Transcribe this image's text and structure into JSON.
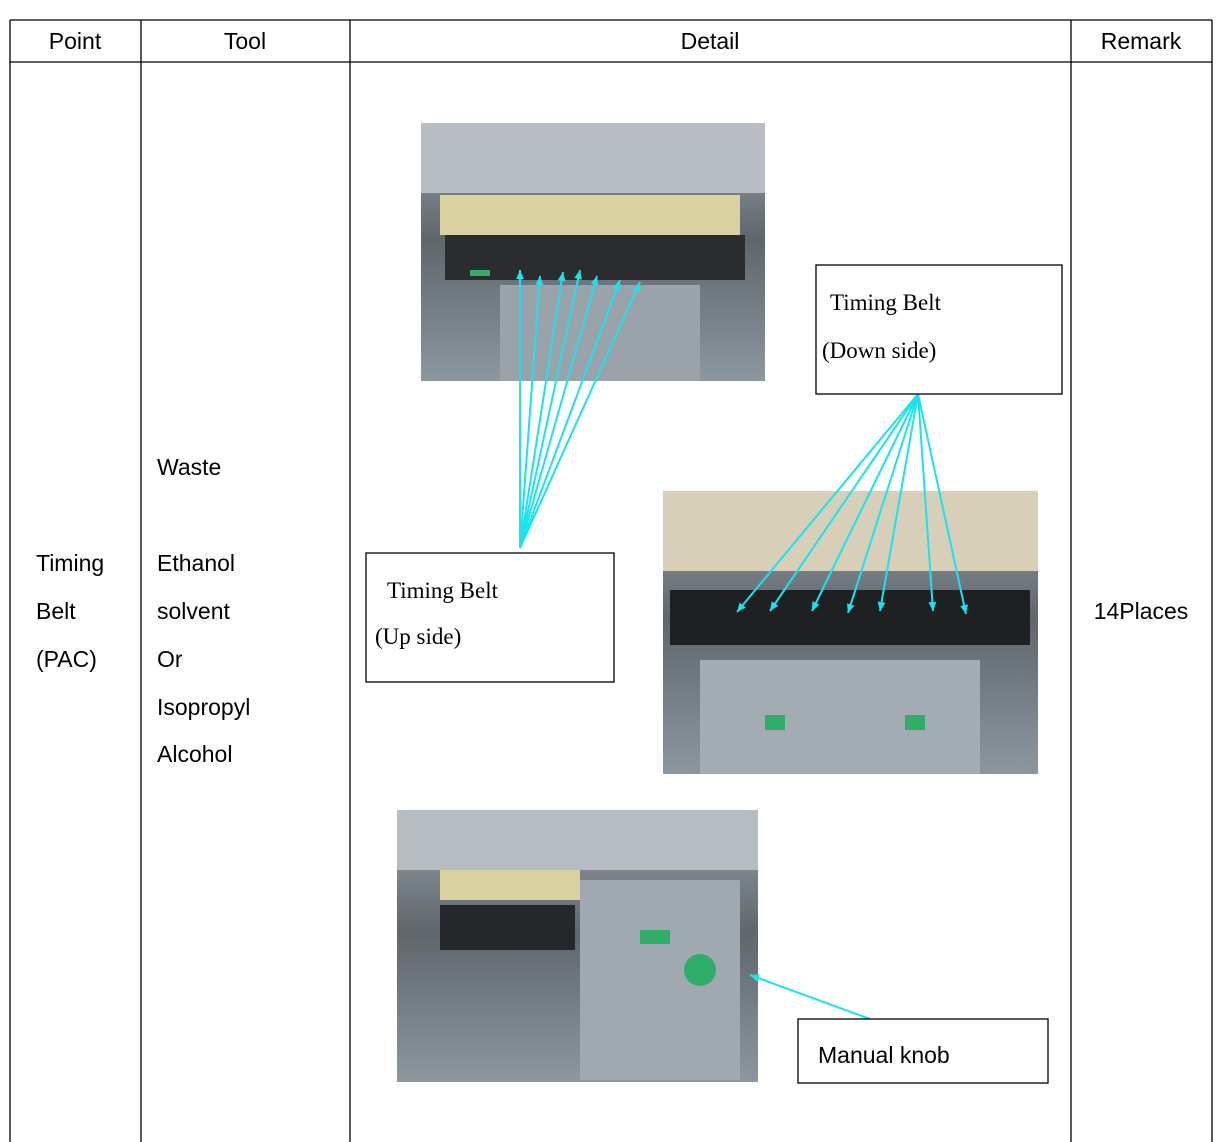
{
  "table": {
    "header": [
      "Point",
      "Tool",
      "Detail",
      "Remark"
    ],
    "point": [
      "Timing",
      "Belt",
      "(PAC)"
    ],
    "tool": [
      "Waste",
      "Ethanol",
      "solvent",
      "Or",
      "Isopropyl",
      "Alcohol"
    ],
    "remark": "14Places",
    "callouts": {
      "up_side": [
        "Timing Belt",
        "(Up side)"
      ],
      "down_side": [
        "Timing Belt",
        "(Down side)"
      ],
      "manual_knob": "Manual knob"
    }
  }
}
